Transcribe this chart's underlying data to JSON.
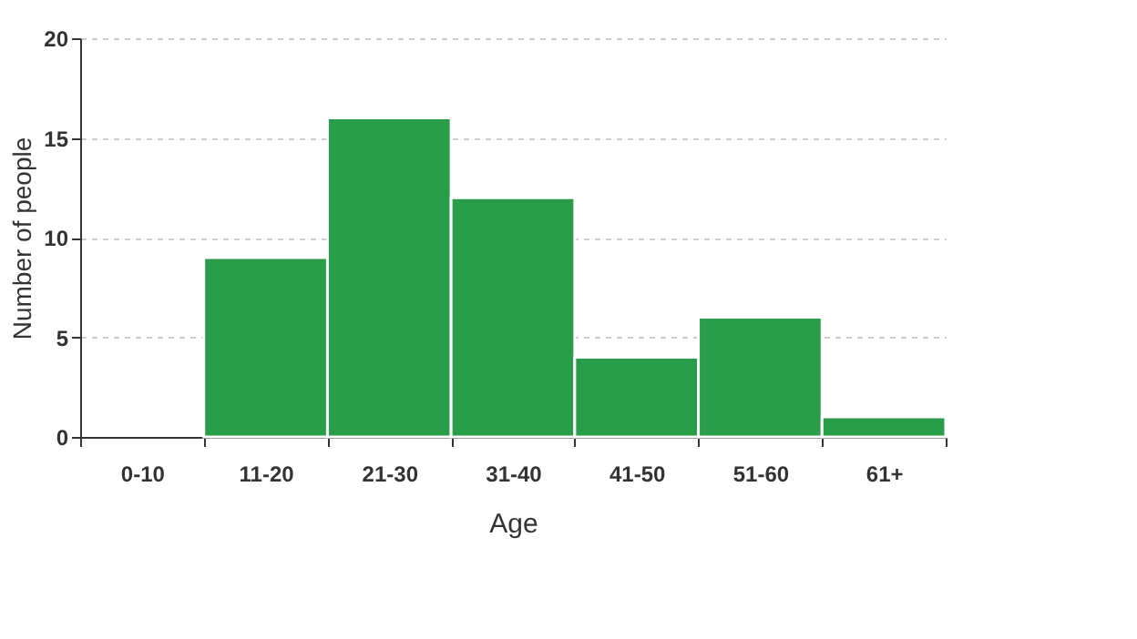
{
  "chart_data": {
    "type": "bar",
    "xlabel": "Age",
    "ylabel": "Number of people",
    "categories": [
      "0-10",
      "11-20",
      "21-30",
      "31-40",
      "41-50",
      "51-60",
      "61+"
    ],
    "values": [
      0,
      9,
      16,
      12,
      4,
      6,
      1
    ],
    "color": "#2a9d4b",
    "ylim": [
      0,
      20
    ],
    "yticks": [
      0,
      5,
      10,
      15,
      20
    ],
    "grid": "y"
  }
}
